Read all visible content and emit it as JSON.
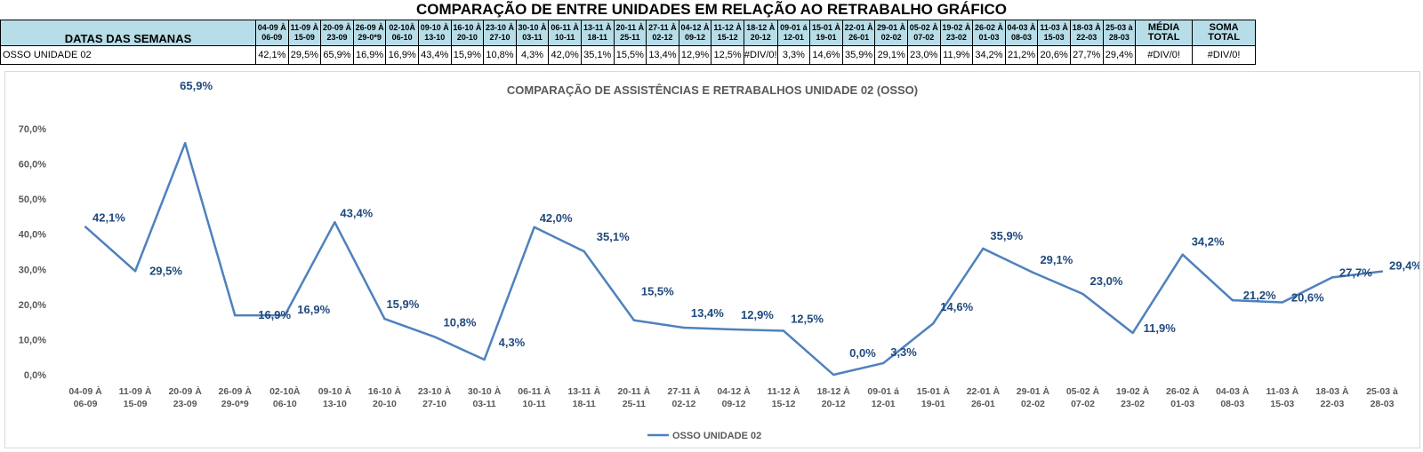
{
  "page_title": "COMPARAÇÃO DE ENTRE UNIDADES EM RELAÇÃO AO RETRABALHO GRÁFICO",
  "table": {
    "header_label": "DATAS DAS SEMANAS",
    "row_label": "OSSO UNIDADE 02",
    "weeks": [
      [
        "04-09 À",
        "06-09"
      ],
      [
        "11-09 À",
        "15-09"
      ],
      [
        "20-09 À",
        "23-09"
      ],
      [
        "26-09 À",
        "29-0*9"
      ],
      [
        "02-10À",
        "06-10"
      ],
      [
        "09-10 À",
        "13-10"
      ],
      [
        "16-10 À",
        "20-10"
      ],
      [
        "23-10 À",
        "27-10"
      ],
      [
        "30-10 À",
        "03-11"
      ],
      [
        "06-11 À",
        "10-11"
      ],
      [
        "13-11 À",
        "18-11"
      ],
      [
        "20-11 À",
        "25-11"
      ],
      [
        "27-11 À",
        "02-12"
      ],
      [
        "04-12 À",
        "09-12"
      ],
      [
        "11-12 À",
        "15-12"
      ],
      [
        "18-12 À",
        "20-12"
      ],
      [
        "09-01 á",
        "12-01"
      ],
      [
        "15-01 À",
        "19-01"
      ],
      [
        "22-01 À",
        "26-01"
      ],
      [
        "29-01 À",
        "02-02"
      ],
      [
        "05-02 À",
        "07-02"
      ],
      [
        "19-02 À",
        "23-02"
      ],
      [
        "26-02 À",
        "01-03"
      ],
      [
        "04-03 À",
        "08-03"
      ],
      [
        "11-03 À",
        "15-03"
      ],
      [
        "18-03 À",
        "22-03"
      ],
      [
        "25-03 à",
        "28-03"
      ]
    ],
    "values": [
      "42,1%",
      "29,5%",
      "65,9%",
      "16,9%",
      "16,9%",
      "43,4%",
      "15,9%",
      "10,8%",
      "4,3%",
      "42,0%",
      "35,1%",
      "15,5%",
      "13,4%",
      "12,9%",
      "12,5%",
      "#DIV/0!",
      "3,3%",
      "14,6%",
      "35,9%",
      "29,1%",
      "23,0%",
      "11,9%",
      "34,2%",
      "21,2%",
      "20,6%",
      "27,7%",
      "29,4%"
    ],
    "media_header": [
      "MÉDIA",
      "TOTAL"
    ],
    "soma_header": [
      "SOMA",
      "TOTAL"
    ],
    "media_value": "#DIV/0!",
    "soma_value": "#DIV/0!"
  },
  "chart_data": {
    "type": "line",
    "title": "COMPARAÇÃO DE ASSISTÊNCIAS E RETRABALHOS UNIDADE 02  (OSSO)",
    "categories": [
      [
        "04-09 À",
        "06-09"
      ],
      [
        "11-09 À",
        "15-09"
      ],
      [
        "20-09 À",
        "23-09"
      ],
      [
        "26-09 À",
        "29-0*9"
      ],
      [
        "02-10À",
        "06-10"
      ],
      [
        "09-10 À",
        "13-10"
      ],
      [
        "16-10 À",
        "20-10"
      ],
      [
        "23-10 À",
        "27-10"
      ],
      [
        "30-10 À",
        "03-11"
      ],
      [
        "06-11 À",
        "10-11"
      ],
      [
        "13-11 À",
        "18-11"
      ],
      [
        "20-11 À",
        "25-11"
      ],
      [
        "27-11 À",
        "02-12"
      ],
      [
        "04-12 À",
        "09-12"
      ],
      [
        "11-12 À",
        "15-12"
      ],
      [
        "18-12 À",
        "20-12"
      ],
      [
        "09-01 á",
        "12-01"
      ],
      [
        "15-01 À",
        "19-01"
      ],
      [
        "22-01 À",
        "26-01"
      ],
      [
        "29-01 À",
        "02-02"
      ],
      [
        "05-02 À",
        "07-02"
      ],
      [
        "19-02 À",
        "23-02"
      ],
      [
        "26-02 À",
        "01-03"
      ],
      [
        "04-03 À",
        "08-03"
      ],
      [
        "11-03 À",
        "15-03"
      ],
      [
        "18-03 À",
        "22-03"
      ],
      [
        "25-03 à",
        "28-03"
      ]
    ],
    "series": [
      {
        "name": "OSSO UNIDADE 02",
        "color": "#4f81bd",
        "values": [
          42.1,
          29.5,
          65.9,
          16.9,
          16.9,
          43.4,
          15.9,
          10.8,
          4.3,
          42.0,
          35.1,
          15.5,
          13.4,
          12.9,
          12.5,
          0.0,
          3.3,
          14.6,
          35.9,
          29.1,
          23.0,
          11.9,
          34.2,
          21.2,
          20.6,
          27.7,
          29.4
        ],
        "labels": [
          "42,1%",
          "29,5%",
          "65,9%",
          "16,9%",
          "16,9%",
          "43,4%",
          "15,9%",
          "10,8%",
          "4,3%",
          "42,0%",
          "35,1%",
          "15,5%",
          "13,4%",
          "12,9%",
          "12,5%",
          "0,0%",
          "3,3%",
          "14,6%",
          "35,9%",
          "29,1%",
          "23,0%",
          "11,9%",
          "34,2%",
          "21,2%",
          "20,6%",
          "27,7%",
          "29,4%"
        ]
      }
    ],
    "y_ticks": [
      "0,0%",
      "10,0%",
      "20,0%",
      "30,0%",
      "40,0%",
      "50,0%",
      "60,0%",
      "70,0%"
    ],
    "ylim": [
      0,
      70
    ],
    "grid": false,
    "legend": "bottom",
    "colors": {
      "axis_text": "#595959",
      "label_text": "#1f497d",
      "header_bg": "#b7dde8",
      "soma_bg": "#ffff00",
      "media_bg": "#fce4d6"
    }
  }
}
